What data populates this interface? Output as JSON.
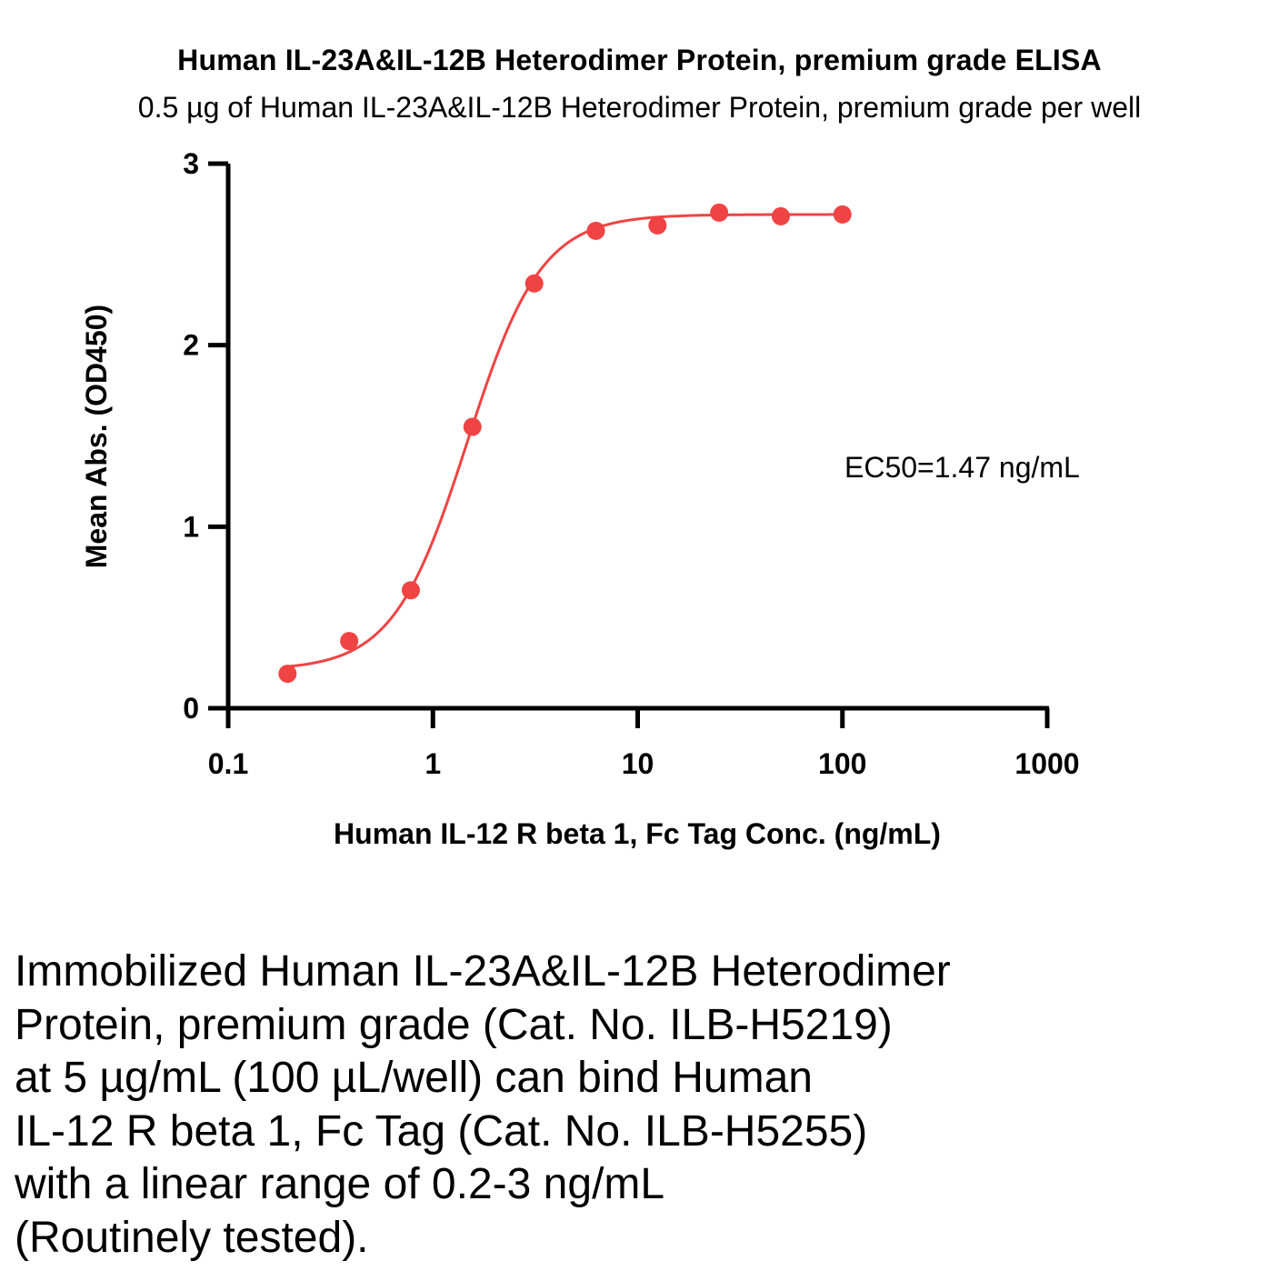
{
  "chart_data": {
    "type": "scatter",
    "title": "Human IL-23A&IL-12B Heterodimer Protein, premium grade ELISA",
    "subtitle": "0.5 µg of Human IL-23A&IL-12B Heterodimer Protein, premium grade per well",
    "xlabel": "Human IL-12 R beta 1, Fc Tag Conc. (ng/mL)",
    "ylabel": "Mean Abs. (OD450)",
    "xscale": "log",
    "xlim": [
      0.1,
      1000
    ],
    "ylim": [
      0,
      3
    ],
    "x_ticks": [
      0.1,
      1,
      10,
      100,
      1000
    ],
    "x_tick_labels": [
      "0.1",
      "1",
      "10",
      "100",
      "1000"
    ],
    "y_ticks": [
      0,
      1,
      2,
      3
    ],
    "y_tick_labels": [
      "0",
      "1",
      "2",
      "3"
    ],
    "grid": false,
    "series": [
      {
        "color": "#f04343",
        "x": [
          0.195,
          0.39,
          0.78,
          1.56,
          3.125,
          6.25,
          12.5,
          25,
          50,
          100
        ],
        "y": [
          0.19,
          0.37,
          0.65,
          1.55,
          2.34,
          2.63,
          2.66,
          2.73,
          2.71,
          2.72
        ]
      }
    ],
    "fit_curve": {
      "model": "4PL",
      "bottom": 0.21,
      "top": 2.72,
      "ec50": 1.47,
      "hill": 2.4,
      "x_range": [
        0.195,
        100
      ]
    },
    "annotations": [
      "EC50=1.47 ng/mL"
    ]
  },
  "caption": {
    "lines": [
      "Immobilized Human IL-23A&IL-12B Heterodimer",
      "Protein, premium grade (Cat. No. ILB-H5219)",
      "at 5 µg/mL (100 µL/well) can bind Human",
      "IL-12 R beta 1, Fc Tag (Cat. No. ILB-H5255)",
      "with a linear range of 0.2-3 ng/mL",
      "(Routinely tested)."
    ]
  }
}
